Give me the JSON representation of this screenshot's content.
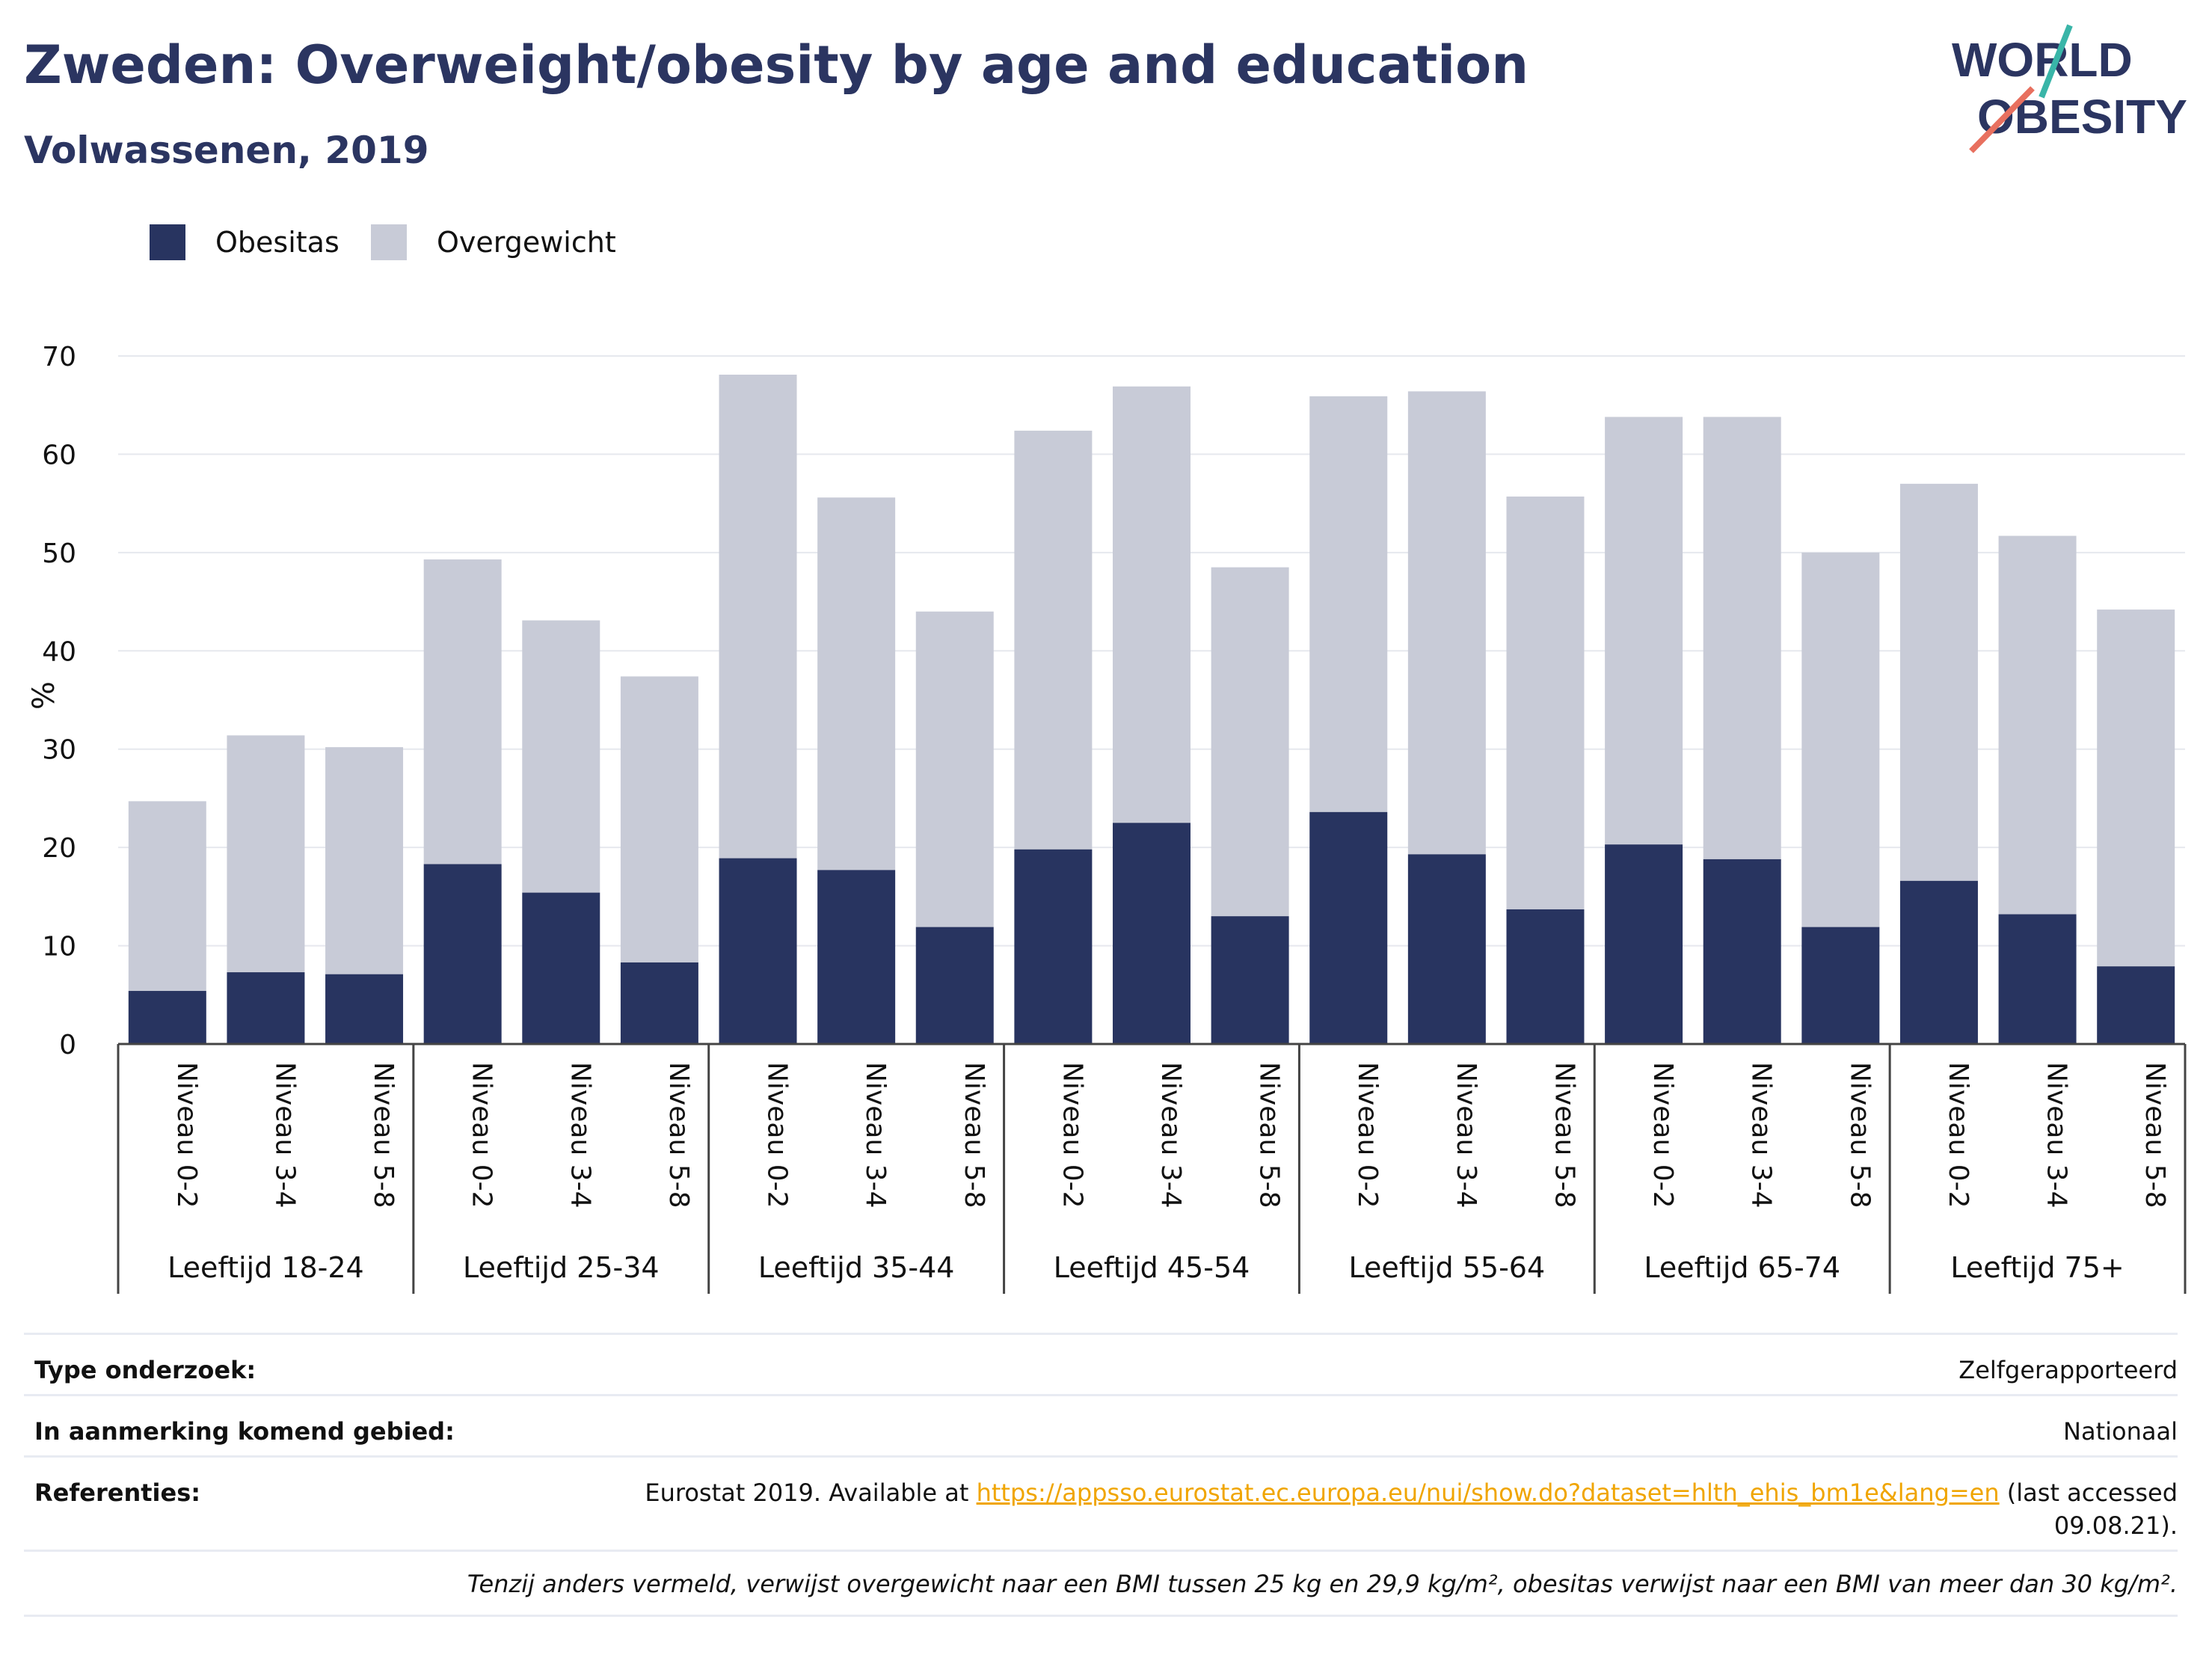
{
  "header": {
    "title": "Zweden: Overweight/obesity by age and education",
    "subtitle": "Volwassenen, 2019",
    "logo_line1": "WORLD",
    "logo_line2": "OBESITY"
  },
  "legend": {
    "items": [
      {
        "label": "Obesitas",
        "color": "#283460"
      },
      {
        "label": "Overgewicht",
        "color": "#c8cbd7"
      }
    ]
  },
  "chart_data": {
    "type": "bar",
    "stacked": true,
    "ylabel": "%",
    "ylim": [
      0,
      70
    ],
    "yticks": [
      0,
      10,
      20,
      30,
      40,
      50,
      60,
      70
    ],
    "grid": true,
    "legend_position": "top-left",
    "groups": [
      "Leeftijd 18-24",
      "Leeftijd 25-34",
      "Leeftijd 35-44",
      "Leeftijd 45-54",
      "Leeftijd 55-64",
      "Leeftijd 65-74",
      "Leeftijd 75+"
    ],
    "subcategories": [
      "Niveau 0-2",
      "Niveau 3-4",
      "Niveau 5-8"
    ],
    "series": [
      {
        "name": "Obesitas",
        "color": "#283460",
        "values": [
          5.4,
          7.3,
          7.1,
          18.3,
          15.4,
          8.3,
          18.9,
          17.7,
          11.9,
          19.8,
          22.5,
          13.0,
          23.6,
          19.3,
          13.7,
          20.3,
          18.8,
          11.9,
          16.6,
          13.2,
          7.9
        ]
      },
      {
        "name": "Overgewicht",
        "color": "#c8cbd7",
        "values": [
          19.3,
          24.1,
          23.1,
          31.0,
          27.7,
          29.1,
          49.2,
          37.9,
          32.1,
          42.6,
          44.4,
          35.5,
          42.3,
          47.1,
          42.0,
          43.5,
          45.0,
          38.1,
          40.4,
          38.5,
          36.3
        ]
      }
    ],
    "totals_shown": [
      24.7,
      31.4,
      30.2,
      49.3,
      43.1,
      37.4,
      68.1,
      55.6,
      44.0,
      62.4,
      66.9,
      48.5,
      65.9,
      66.4,
      55.7,
      63.8,
      63.8,
      50.0,
      57.0,
      51.7,
      44.2
    ]
  },
  "meta": {
    "rows": [
      {
        "key": "Type onderzoek:",
        "value": "Zelfgerapporteerd"
      },
      {
        "key": "In aanmerking komend gebied:",
        "value": "Nationaal"
      }
    ],
    "references_key": "Referenties:",
    "references_prefix": "Eurostat 2019. Available at ",
    "references_link": "https://appsso.eurostat.ec.europa.eu/nui/show.do?dataset=hlth_ehis_bm1e&lang=en",
    "references_suffix": " (last accessed",
    "references_line2": "09.08.21).",
    "note": "Tenzij anders vermeld, verwijst overgewicht naar een BMI tussen 25 kg en 29,9 kg/m², obesitas verwijst naar een BMI van meer dan 30 kg/m²."
  }
}
